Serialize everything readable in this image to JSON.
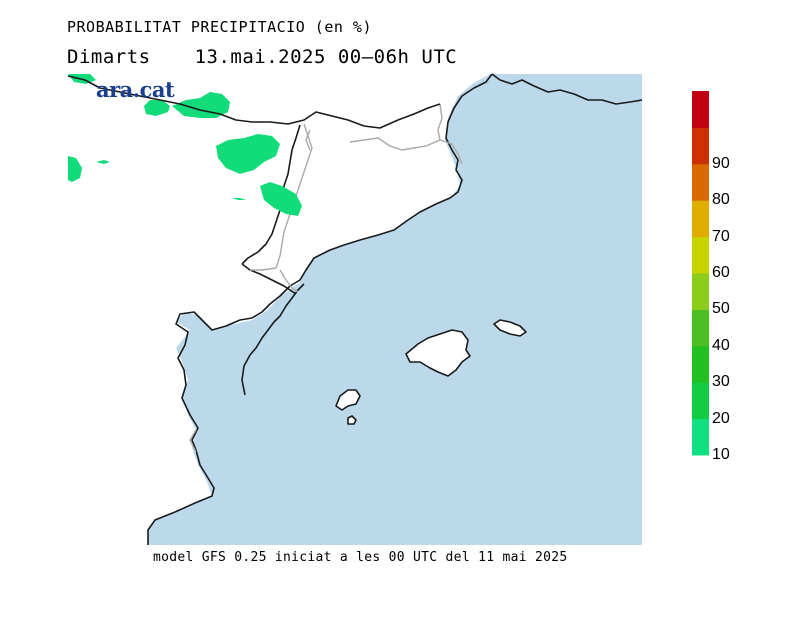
{
  "header": {
    "title": "PROBABILITAT PRECIPITACIO (en %)",
    "day": "Dimarts",
    "date_range": "13.mai.2025 00–06h UTC"
  },
  "logo": {
    "text": "ara.cat"
  },
  "footer": {
    "text": "model GFS 0.25 iniciat a les 00 UTC del 11 mai 2025"
  },
  "colors": {
    "sea": "#bcd9ec",
    "land": "#ffffff",
    "coast": "#1a1a1a",
    "border": "#a9a9a9",
    "precip": "#12dc7a"
  },
  "legend": {
    "levels": [
      {
        "value": "10",
        "color": "#10e080"
      },
      {
        "value": "20",
        "color": "#12cc44"
      },
      {
        "value": "30",
        "color": "#22c020"
      },
      {
        "value": "40",
        "color": "#4cbf22"
      },
      {
        "value": "50",
        "color": "#8ccc1a"
      },
      {
        "value": "60",
        "color": "#c8d400"
      },
      {
        "value": "70",
        "color": "#e0ac00"
      },
      {
        "value": "80",
        "color": "#d86a00"
      },
      {
        "value": "90",
        "color": "#cc3000"
      },
      {
        "value": "",
        "color": "#c00010"
      }
    ]
  }
}
